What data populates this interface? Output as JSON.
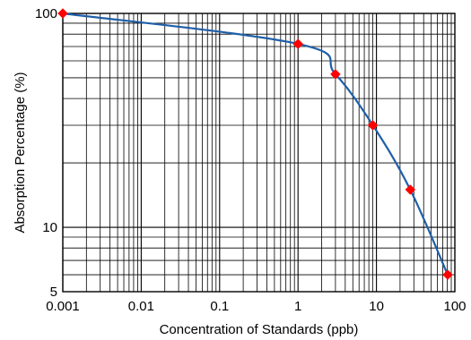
{
  "chart_data": {
    "type": "line",
    "title": "",
    "xlabel": "Concentration of Standards (ppb)",
    "ylabel": "Absorption Percentage (%)",
    "xscale": "log",
    "yscale": "log",
    "xlim": [
      0.001,
      100
    ],
    "ylim": [
      5,
      100
    ],
    "grid": true,
    "x_ticks": [
      {
        "value": 0.001,
        "label": "0.001"
      },
      {
        "value": 0.01,
        "label": "0.01"
      },
      {
        "value": 0.1,
        "label": "0.1"
      },
      {
        "value": 1,
        "label": "1"
      },
      {
        "value": 10,
        "label": "10"
      },
      {
        "value": 100,
        "label": "100"
      }
    ],
    "y_ticks": [
      {
        "value": 5,
        "label": "5"
      },
      {
        "value": 10,
        "label": "10"
      },
      {
        "value": 100,
        "label": "100"
      }
    ],
    "series": [
      {
        "x": [
          0.001,
          1,
          3,
          9,
          27,
          81
        ],
        "y": [
          100,
          72,
          52,
          30,
          15,
          6
        ],
        "line_color": "#1f5fa8",
        "marker": "diamond",
        "marker_color": "#ff0000"
      }
    ]
  }
}
